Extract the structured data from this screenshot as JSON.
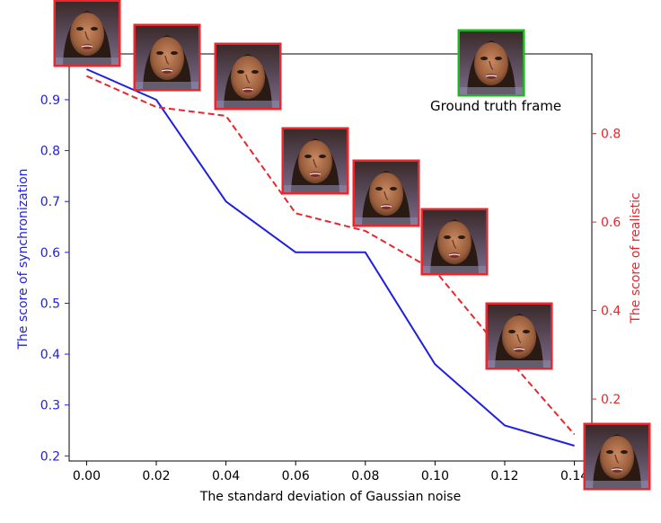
{
  "chart_data": {
    "type": "line",
    "xlabel": "The standard deviation of Gaussian noise",
    "ylabel_left": "The score of synchronization",
    "ylabel_right": "The score of realistic",
    "annotation": "Ground truth frame",
    "x": [
      0.0,
      0.02,
      0.04,
      0.06,
      0.08,
      0.1,
      0.12,
      0.14
    ],
    "x_tick_labels": [
      "0.00",
      "0.02",
      "0.04",
      "0.06",
      "0.08",
      "0.10",
      "0.12",
      "0.14"
    ],
    "xlim": [
      -0.005,
      0.145
    ],
    "ylim_left": [
      0.19,
      0.99
    ],
    "ylim_right": [
      0.06,
      0.98
    ],
    "left_ticks": [
      0.2,
      0.3,
      0.4,
      0.5,
      0.6,
      0.7,
      0.8,
      0.9
    ],
    "left_tick_labels": [
      "0.2",
      "0.3",
      "0.4",
      "0.5",
      "0.6",
      "0.7",
      "0.8",
      "0.9"
    ],
    "right_ticks": [
      0.2,
      0.4,
      0.6,
      0.8
    ],
    "right_tick_labels": [
      "0.2",
      "0.4",
      "0.6",
      "0.8"
    ],
    "series": [
      {
        "axis": "left",
        "color": "#1f1fe0",
        "style": "solid",
        "values": [
          0.96,
          0.9,
          0.7,
          0.6,
          0.6,
          0.38,
          0.26,
          0.22
        ]
      },
      {
        "axis": "right",
        "color": "#e8262c",
        "style": "dashed",
        "values": [
          0.93,
          0.86,
          0.84,
          0.62,
          0.58,
          0.49,
          0.3,
          0.12
        ]
      }
    ],
    "grid": false,
    "colors": {
      "left_axis": "#1f1fe0",
      "right_axis": "#e8262c",
      "frame_border": "#e8262c",
      "ground_truth_border": "#1fb51f"
    }
  }
}
